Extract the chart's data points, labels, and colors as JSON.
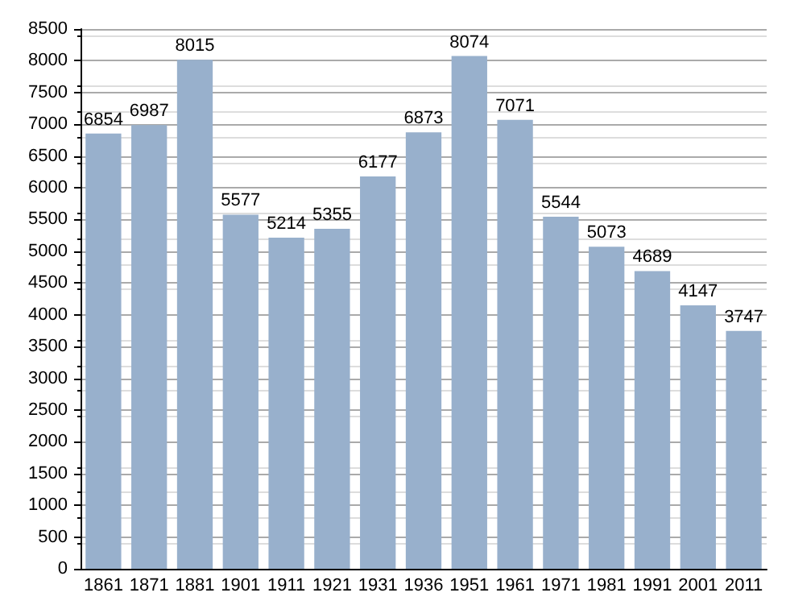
{
  "chart_data": {
    "type": "bar",
    "categories": [
      "1861",
      "1871",
      "1881",
      "1901",
      "1911",
      "1921",
      "1931",
      "1936",
      "1951",
      "1961",
      "1971",
      "1981",
      "1991",
      "2001",
      "2011"
    ],
    "values": [
      6854,
      6987,
      8015,
      5577,
      5214,
      5355,
      6177,
      6873,
      8074,
      7071,
      5544,
      5073,
      4689,
      4147,
      3747
    ],
    "color": "#98b0cc",
    "ylim": [
      0,
      8500
    ],
    "yticks": [
      0,
      500,
      1000,
      1500,
      2000,
      2500,
      3000,
      3500,
      4000,
      4500,
      5000,
      5500,
      6000,
      6500,
      7000,
      7500,
      8000,
      8500
    ],
    "grid": "y",
    "data_labels": true
  }
}
